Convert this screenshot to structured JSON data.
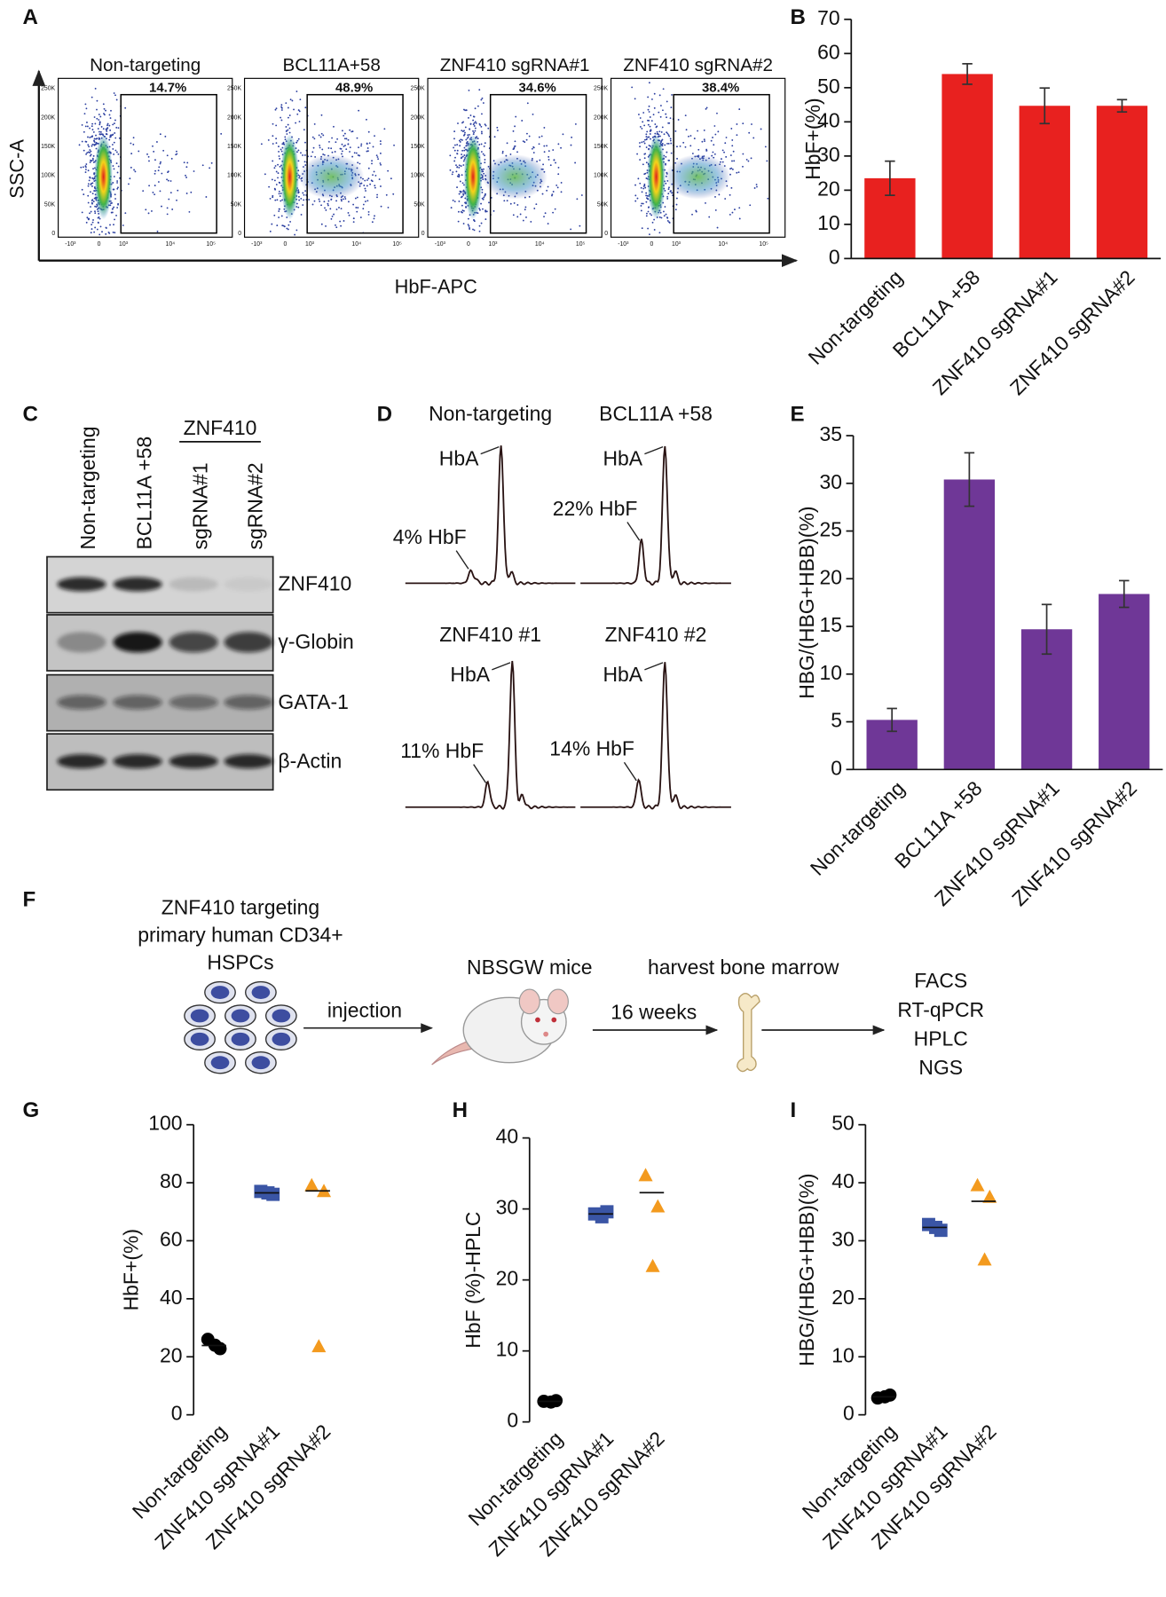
{
  "panel_labels": [
    "A",
    "B",
    "C",
    "D",
    "E",
    "F",
    "G",
    "H",
    "I"
  ],
  "flow": {
    "titles": [
      "Non-targeting",
      "BCL11A+58",
      "ZNF410 sgRNA#1",
      "ZNF410 sgRNA#2"
    ],
    "gates": [
      "14.7%",
      "48.9%",
      "34.6%",
      "38.4%"
    ],
    "y_label": "SSC-A",
    "x_label": "HbF-APC",
    "y_tick_labels": [
      "250K",
      "200K",
      "150K",
      "100K",
      "50K",
      "0"
    ],
    "x_tick_labels": [
      "-10³",
      "0",
      "10³",
      "10⁴",
      "10⁵"
    ]
  },
  "blot": {
    "group_label": "ZNF410",
    "lanes": [
      "Non-targeting",
      "BCL11A +58",
      "sgRNA#1",
      "sgRNA#2"
    ],
    "rows": [
      "ZNF410",
      "γ-Globin",
      "GATA-1",
      "β-Actin"
    ]
  },
  "hplc": {
    "traces": [
      {
        "title": "Non-targeting",
        "peak_a": "HbA",
        "peak_f": "4% HbF"
      },
      {
        "title": "BCL11A +58",
        "peak_a": "HbA",
        "peak_f": "22% HbF"
      },
      {
        "title": "ZNF410 #1",
        "peak_a": "HbA",
        "peak_f": "11% HbF"
      },
      {
        "title": "ZNF410 #2",
        "peak_a": "HbA",
        "peak_f": "14% HbF"
      }
    ]
  },
  "schematic": {
    "title_lines": [
      "ZNF410 targeting",
      "primary human CD34+",
      "HSPCs"
    ],
    "step1": "injection",
    "mice": "NBSGW mice",
    "harvest": "harvest bone marrow",
    "duration": "16 weeks",
    "readouts": [
      "FACS",
      "RT-qPCR",
      "HPLC",
      "NGS"
    ]
  },
  "chart_data": [
    {
      "type": "bar",
      "y_label": "HbF+(%)",
      "categories": [
        "Non-targeting",
        "BCL11A +58",
        "ZNF410 sgRNA#1",
        "ZNF410 sgRNA#2"
      ],
      "values": [
        23.5,
        54,
        44.7,
        44.7
      ],
      "errors": [
        5,
        3,
        5.2,
        1.8
      ],
      "color": "#e8211f",
      "ylim": [
        0,
        70
      ],
      "yticks": [
        0,
        10,
        20,
        30,
        40,
        50,
        60,
        70
      ]
    },
    {
      "type": "bar",
      "y_label": "HBG/(HBG+HBB)(%)",
      "categories": [
        "Non-targeting",
        "BCL11A +58",
        "ZNF410 sgRNA#1",
        "ZNF410 sgRNA#2"
      ],
      "values": [
        5.2,
        30.4,
        14.7,
        18.4
      ],
      "errors": [
        1.2,
        2.8,
        2.6,
        1.4
      ],
      "color": "#6f3797",
      "ylim": [
        0,
        35
      ],
      "yticks": [
        0,
        5,
        10,
        15,
        20,
        25,
        30,
        35
      ]
    },
    {
      "type": "dot",
      "y_label": "HbF+(%)",
      "categories": [
        "Non-targeting",
        "ZNF410 sgRNA#1",
        "ZNF410 sgRNA#2"
      ],
      "points": [
        [
          26,
          22.8,
          24
        ],
        [
          77,
          76,
          76.5
        ],
        [
          79,
          77,
          23.5
        ]
      ],
      "center_lines": [
        23.9,
        76.5,
        77.2
      ],
      "colors": [
        "#000000",
        "#3a55a5",
        "#f39a1e"
      ],
      "markers": [
        "circle",
        "square",
        "triangle"
      ],
      "ylim": [
        0,
        100
      ],
      "yticks": [
        0,
        20,
        40,
        60,
        80,
        100
      ]
    },
    {
      "type": "dot",
      "y_label": "HbF (%)-HPLC",
      "categories": [
        "Non-targeting",
        "ZNF410 sgRNA#1",
        "ZNF410 sgRNA#2"
      ],
      "points": [
        [
          2.9,
          3,
          2.8
        ],
        [
          29.3,
          29.6,
          28.9
        ],
        [
          34.7,
          30.3,
          21.9
        ]
      ],
      "center_lines": [
        2.9,
        29.3,
        32.3
      ],
      "colors": [
        "#000000",
        "#3a55a5",
        "#f39a1e"
      ],
      "markers": [
        "circle",
        "square",
        "triangle"
      ],
      "ylim": [
        0,
        40
      ],
      "yticks": [
        0,
        10,
        20,
        30,
        40
      ]
    },
    {
      "type": "dot",
      "y_label": "HBG/(HBG+HBB)(%)",
      "categories": [
        "Non-targeting",
        "ZNF410 sgRNA#1",
        "ZNF410 sgRNA#2"
      ],
      "points": [
        [
          2.9,
          3.4,
          3.1
        ],
        [
          32.8,
          31.8,
          32.3
        ],
        [
          39.5,
          37.5,
          26.7
        ]
      ],
      "center_lines": [
        3.1,
        32.3,
        36.8
      ],
      "colors": [
        "#000000",
        "#3a55a5",
        "#f39a1e"
      ],
      "markers": [
        "circle",
        "square",
        "triangle"
      ],
      "ylim": [
        0,
        50
      ],
      "yticks": [
        0,
        10,
        20,
        30,
        40,
        50
      ]
    }
  ]
}
